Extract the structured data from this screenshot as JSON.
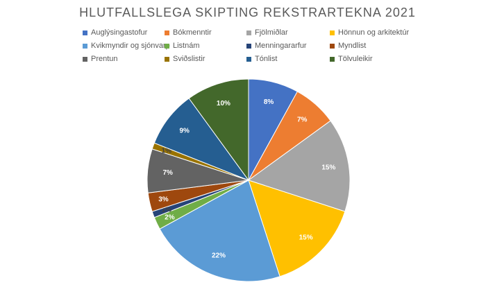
{
  "chart_data": {
    "type": "pie",
    "title": "HLUTFALLSLEGA SKIPTING REKSTRARTEKNA 2021",
    "legend_position": "top",
    "slices": [
      {
        "name": "Auglýsingastofur",
        "value": 8,
        "label": "8%",
        "color": "#4472C4",
        "label_color": "#ffffff"
      },
      {
        "name": "Bókmenntir",
        "value": 7,
        "label": "7%",
        "color": "#ED7D31",
        "label_color": "#ffffff"
      },
      {
        "name": "Fjölmiðlar",
        "value": 15,
        "label": "15%",
        "color": "#A5A5A5",
        "label_color": "#ffffff"
      },
      {
        "name": "Hönnun og arkitektúr",
        "value": 15,
        "label": "15%",
        "color": "#FFC000",
        "label_color": "#ffffff"
      },
      {
        "name": "Kvikmyndir og sjónvarp",
        "value": 22,
        "label": "22%",
        "color": "#5B9BD5",
        "label_color": "#ffffff"
      },
      {
        "name": "Listnám",
        "value": 2,
        "label": "2%",
        "color": "#70AD47",
        "label_color": "#ffffff"
      },
      {
        "name": "Menningararfur",
        "value": 1,
        "label": "1%",
        "color": "#264478",
        "label_color": "#404040"
      },
      {
        "name": "Myndlist",
        "value": 3,
        "label": "3%",
        "color": "#9E480E",
        "label_color": "#ffffff"
      },
      {
        "name": "Prentun",
        "value": 7,
        "label": "7%",
        "color": "#636363",
        "label_color": "#ffffff"
      },
      {
        "name": "Sviðslistir",
        "value": 1,
        "label": "1%",
        "color": "#997300",
        "label_color": "#404040"
      },
      {
        "name": "Tónlist",
        "value": 9,
        "label": "9%",
        "color": "#255E91",
        "label_color": "#ffffff"
      },
      {
        "name": "Tölvuleikir",
        "value": 10,
        "label": "10%",
        "color": "#43682B",
        "label_color": "#ffffff"
      }
    ]
  }
}
